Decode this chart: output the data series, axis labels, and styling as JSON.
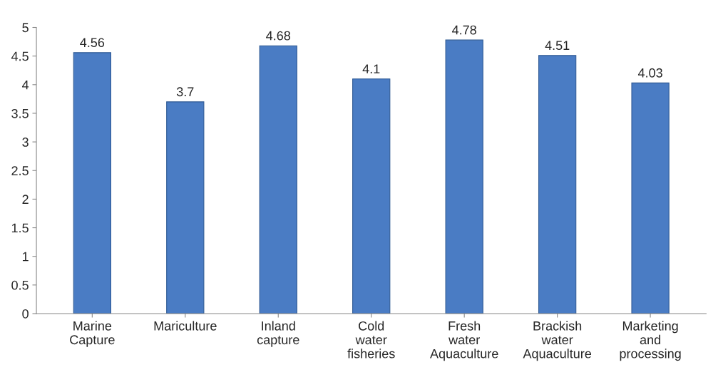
{
  "chart_data": {
    "type": "bar",
    "categories": [
      "Marine Capture",
      "Mariculture",
      "Inland capture",
      "Cold water fisheries",
      "Fresh water Aquaculture",
      "Brackish water Aquaculture",
      "Marketing and processing"
    ],
    "values": [
      4.56,
      3.7,
      4.68,
      4.1,
      4.78,
      4.51,
      4.03
    ],
    "color": "#4a7cc4",
    "ylim": [
      0,
      5
    ],
    "yticks": [
      0,
      0.5,
      1,
      1.5,
      2,
      2.5,
      3,
      3.5,
      4,
      4.5,
      5
    ],
    "data_labels": true,
    "grid": false
  }
}
